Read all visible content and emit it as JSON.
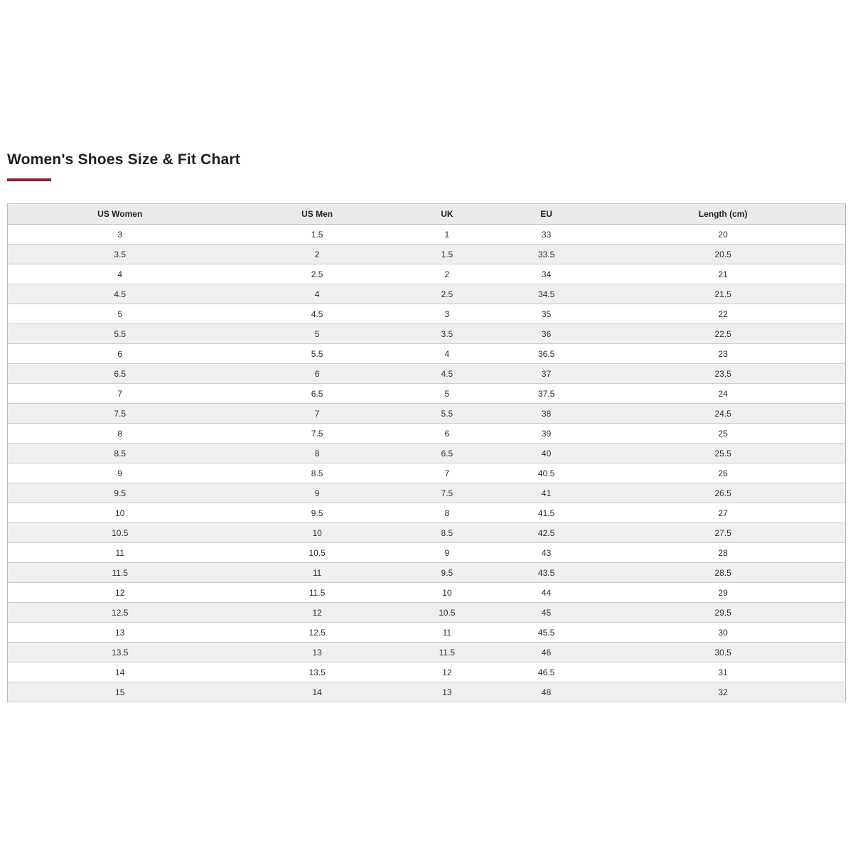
{
  "page": {
    "title": "Women's Shoes Size & Fit Chart",
    "accent_color": "#9b1626"
  },
  "chart_data": {
    "type": "table",
    "title": "Women's Shoes Size & Fit Chart",
    "columns": [
      "US Women",
      "US Men",
      "UK",
      "EU",
      "Length (cm)"
    ],
    "column_widths_percent": [
      26.8,
      20.3,
      10.7,
      13.0,
      29.2
    ],
    "rows": [
      [
        "3",
        "1.5",
        "1",
        "33",
        "20"
      ],
      [
        "3.5",
        "2",
        "1.5",
        "33.5",
        "20.5"
      ],
      [
        "4",
        "2.5",
        "2",
        "34",
        "21"
      ],
      [
        "4.5",
        "4",
        "2.5",
        "34.5",
        "21.5"
      ],
      [
        "5",
        "4.5",
        "3",
        "35",
        "22"
      ],
      [
        "5.5",
        "5",
        "3.5",
        "36",
        "22.5"
      ],
      [
        "6",
        "5.5",
        "4",
        "36.5",
        "23"
      ],
      [
        "6.5",
        "6",
        "4.5",
        "37",
        "23.5"
      ],
      [
        "7",
        "6.5",
        "5",
        "37.5",
        "24"
      ],
      [
        "7.5",
        "7",
        "5.5",
        "38",
        "24.5"
      ],
      [
        "8",
        "7.5",
        "6",
        "39",
        "25"
      ],
      [
        "8.5",
        "8",
        "6.5",
        "40",
        "25.5"
      ],
      [
        "9",
        "8.5",
        "7",
        "40.5",
        "26"
      ],
      [
        "9.5",
        "9",
        "7.5",
        "41",
        "26.5"
      ],
      [
        "10",
        "9.5",
        "8",
        "41.5",
        "27"
      ],
      [
        "10.5",
        "10",
        "8.5",
        "42.5",
        "27.5"
      ],
      [
        "11",
        "10.5",
        "9",
        "43",
        "28"
      ],
      [
        "11.5",
        "11",
        "9.5",
        "43.5",
        "28.5"
      ],
      [
        "12",
        "11.5",
        "10",
        "44",
        "29"
      ],
      [
        "12.5",
        "12",
        "10.5",
        "45",
        "29.5"
      ],
      [
        "13",
        "12.5",
        "11",
        "45.5",
        "30"
      ],
      [
        "13.5",
        "13",
        "11.5",
        "46",
        "30.5"
      ],
      [
        "14",
        "13.5",
        "12",
        "46.5",
        "31"
      ],
      [
        "15",
        "14",
        "13",
        "48",
        "32"
      ]
    ]
  }
}
